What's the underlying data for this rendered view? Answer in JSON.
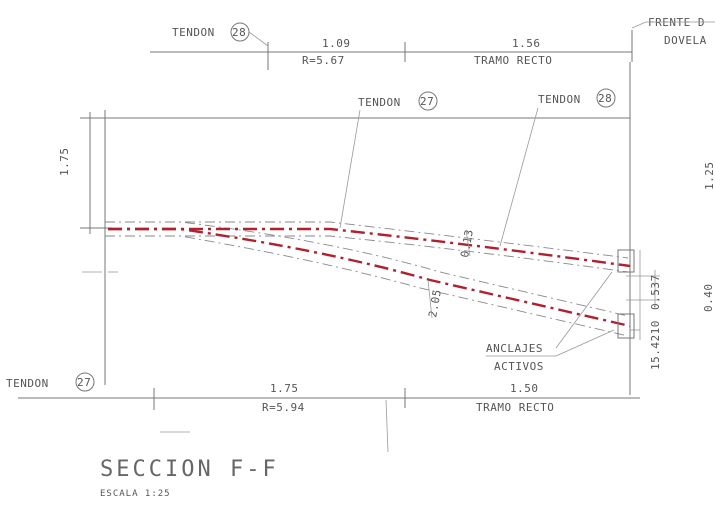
{
  "labels": {
    "tendon_top": "TENDON",
    "tendon_top_num": "28",
    "tendon_27": "TENDON",
    "tendon_27_num": "27",
    "tendon_28": "TENDON",
    "tendon_28_num": "28",
    "tendon_bottom": "TENDON",
    "tendon_bottom_num": "27",
    "frente_line1": "FRENTE D",
    "frente_line2": "DOVELA",
    "anclajes_line1": "ANCLAJES",
    "anclajes_line2": "ACTIVOS",
    "title": "SECCION  F-F",
    "scale": "ESCALA 1:25"
  },
  "dimensions": {
    "top_left_value": "1.09",
    "top_left_radius": "R=5.67",
    "top_right_value": "1.56",
    "top_right_desc": "TRAMO RECTO",
    "bottom_left_value": "1.75",
    "bottom_left_radius": "R=5.94",
    "bottom_right_value": "1.50",
    "bottom_right_desc": "TRAMO RECTO",
    "left_vertical": "1.75",
    "right_vertical_top": "1.25",
    "right_small_1": "0.537",
    "right_small_2": "0.40",
    "inclined_1": "0.13",
    "inclined_2": "2.05",
    "diag_angle": "15.4210"
  },
  "colors": {
    "tendon": "#b0202e",
    "lines": "#777777"
  }
}
